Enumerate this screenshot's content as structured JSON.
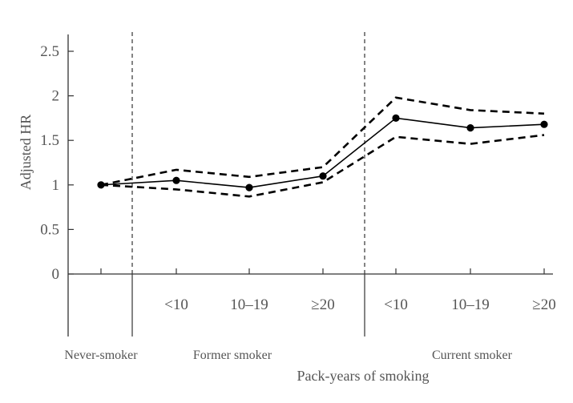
{
  "chart_data": {
    "type": "line",
    "title": "",
    "xlabel": "Pack-years of smoking",
    "ylabel": "Adjusted HR",
    "ylim": [
      0,
      2.7
    ],
    "yticks": [
      "0",
      "0.5",
      "1",
      "1.5",
      "2",
      "2.5"
    ],
    "ytick_values": [
      0,
      0.5,
      1,
      1.5,
      2,
      2.5
    ],
    "categories": [
      "",
      "<10",
      "10–19",
      "≥20",
      "<10",
      "10–19",
      "≥20"
    ],
    "groups": [
      {
        "label": "Never-smoker",
        "categories": [
          0
        ]
      },
      {
        "label": "Former smoker",
        "categories": [
          1,
          2,
          3
        ]
      },
      {
        "label": "Current smoker",
        "categories": [
          4,
          5,
          6
        ]
      }
    ],
    "series": [
      {
        "role": "estimate",
        "style": "solid-with-markers",
        "values": [
          1.0,
          1.05,
          0.97,
          1.1,
          1.75,
          1.64,
          1.68
        ]
      },
      {
        "role": "upper-ci",
        "style": "dashed",
        "values": [
          1.0,
          1.17,
          1.09,
          1.2,
          1.98,
          1.84,
          1.8
        ]
      },
      {
        "role": "lower-ci",
        "style": "dashed",
        "values": [
          1.0,
          0.95,
          0.87,
          1.03,
          1.54,
          1.46,
          1.56
        ]
      }
    ],
    "grid": false,
    "legend": "none",
    "colors": {
      "line": "#000000",
      "axis": "#333333",
      "text": "#555555"
    }
  }
}
